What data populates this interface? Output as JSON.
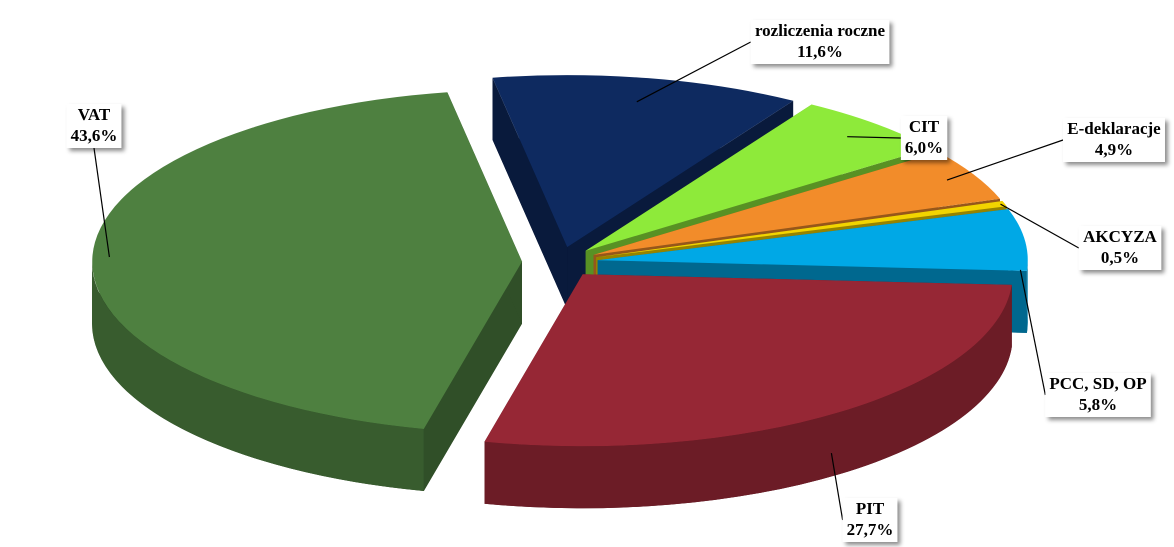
{
  "chart_data": {
    "type": "pie",
    "categories": [
      "rozliczenia roczne",
      "CIT",
      "E-deklaracje",
      "AKCYZA",
      "PCC, SD, OP",
      "PIT",
      "VAT"
    ],
    "values": [
      11.6,
      6.0,
      4.9,
      0.5,
      5.8,
      27.7,
      43.6
    ],
    "value_labels": [
      "11,6%",
      "6,0%",
      "4,9%",
      "0,5%",
      "5,8%",
      "27,7%",
      "43,6%"
    ],
    "colors": [
      "#0e2a60",
      "#8eea3a",
      "#f28c2a",
      "#f2d400",
      "#00a8e6",
      "#962735",
      "#4e8040"
    ]
  }
}
